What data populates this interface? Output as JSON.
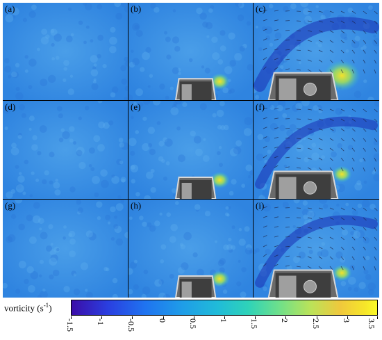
{
  "panels": [
    {
      "label": "(a)",
      "object": false,
      "vortex": 0
    },
    {
      "label": "(b)",
      "object": true,
      "vortex": 1
    },
    {
      "label": "(c)",
      "object": true,
      "vortex": 3
    },
    {
      "label": "(d)",
      "object": false,
      "vortex": 0
    },
    {
      "label": "(e)",
      "object": true,
      "vortex": 1
    },
    {
      "label": "(f)",
      "object": true,
      "vortex": 2
    },
    {
      "label": "(g)",
      "object": false,
      "vortex": 0
    },
    {
      "label": "(h)",
      "object": true,
      "vortex": 1
    },
    {
      "label": "(i)",
      "object": true,
      "vortex": 2
    }
  ],
  "colorbar": {
    "title": "vorticity (s",
    "title_sup": "-1",
    "title_end": ")",
    "ticks": [
      "-1.5",
      "-1",
      "-0.5",
      "0",
      "0.5",
      "1",
      "1.5",
      "2",
      "2.5",
      "3",
      "3.5"
    ],
    "min": -1.5,
    "max": 3.5
  },
  "colors": {
    "background": "#3a8ee6",
    "negative": "#1a2fb5",
    "positive": "#f2e82a"
  }
}
